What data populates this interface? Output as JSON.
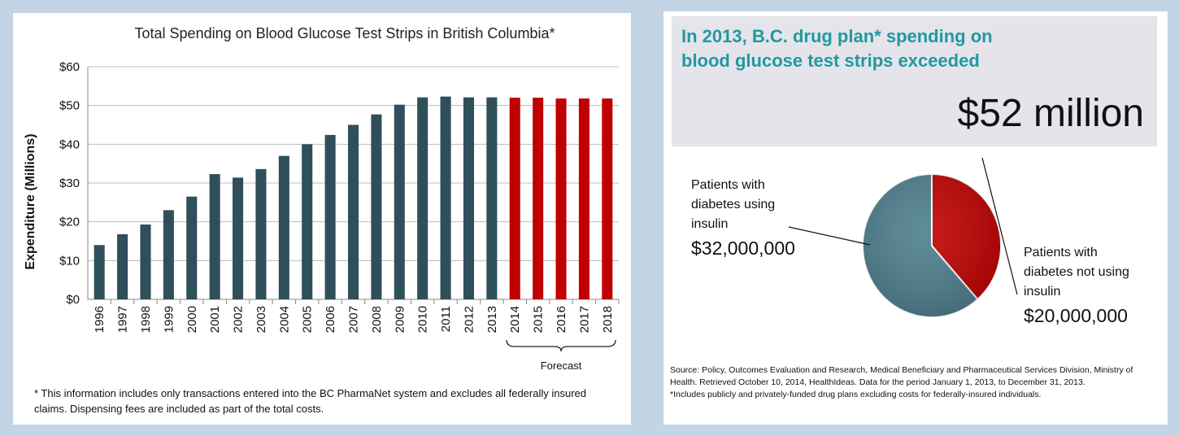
{
  "left_panel": {
    "footnote": "* This information includes only transactions entered into the BC PharmaNet system and excludes all federally insured claims. Dispensing fees are included as part of the total costs."
  },
  "right_panel": {
    "headline_line1": "In 2013, B.C. drug plan* spending on",
    "headline_line2": "blood glucose test strips exceeded",
    "amount": "$52 million",
    "source_line1": "Source: Policy, Outcomes Evaluation and Research, Medical Beneficiary and Pharmaceutical Services Division, Ministry of Health. Retrieved October 10, 2014, HealthIdeas. Data for the period January 1, 2013, to December 31, 2013.",
    "source_line2": "*Includes publicly and privately-funded drug plans excluding  costs for federally-insured individuals."
  },
  "colors": {
    "actual": "#2f4f5a",
    "forecast": "#c00000",
    "pie_insulin": "#4e7e8e",
    "pie_no_insulin": "#c00000",
    "headline": "#1f9aa0"
  },
  "chart_data": [
    {
      "type": "bar",
      "title": "Total Spending  on Blood Glucose Test Strips in British Columbia*",
      "ylabel": "Expenditure (Millions)",
      "xlabel": "",
      "categories": [
        "1996",
        "1997",
        "1998",
        "1999",
        "2000",
        "2001",
        "2002",
        "2003",
        "2004",
        "2005",
        "2006",
        "2007",
        "2008",
        "2009",
        "2010",
        "2011",
        "2012",
        "2013",
        "2014",
        "2015",
        "2016",
        "2017",
        "2018"
      ],
      "values": [
        14,
        16.8,
        19.3,
        23,
        26.5,
        32.3,
        31.4,
        33.6,
        37,
        40,
        42.4,
        45,
        47.7,
        50.2,
        52.1,
        52.3,
        52.1,
        52.1,
        52,
        52,
        51.8,
        51.8,
        51.8
      ],
      "forecast_from": "2014",
      "forecast_label": "Forecast",
      "yticks": [
        "$0",
        "$10",
        "$20",
        "$30",
        "$40",
        "$50",
        "$60"
      ],
      "ylim": [
        0,
        60
      ],
      "grid": true
    },
    {
      "type": "pie",
      "slices": [
        {
          "label_lines": [
            "Patients with",
            "diabetes using",
            "insulin"
          ],
          "value_label": "$32,000,000",
          "value": 32000000
        },
        {
          "label_lines": [
            "Patients with",
            "diabetes not using",
            "insulin"
          ],
          "value_label": "$20,000,000",
          "value": 20000000
        }
      ]
    }
  ]
}
